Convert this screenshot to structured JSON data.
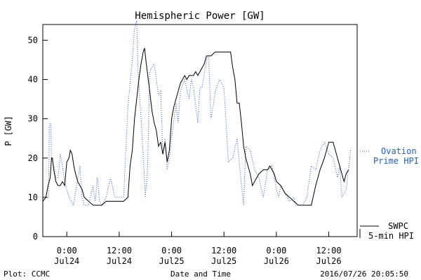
{
  "chart_data": {
    "type": "line",
    "title": "Hemispheric Power [GW]",
    "xlabel": "Date and Time",
    "ylabel": "P [GW]",
    "x_unit": "hours",
    "x_range": [
      -5.5,
      66.5
    ],
    "ylim": [
      0,
      54
    ],
    "yticks": [
      0,
      10,
      20,
      30,
      40,
      50
    ],
    "xticks": [
      {
        "x": 0,
        "time": "0:00",
        "day": "Jul24"
      },
      {
        "x": 12,
        "time": "12:00",
        "day": "Jul24"
      },
      {
        "x": 24,
        "time": "0:00",
        "day": "Jul25"
      },
      {
        "x": 36,
        "time": "12:00",
        "day": "Jul25"
      },
      {
        "x": 48,
        "time": "0:00",
        "day": "Jul26"
      },
      {
        "x": 60,
        "time": "12:00",
        "day": "Jul26"
      }
    ],
    "grid": false,
    "series": [
      {
        "name": "Ovation Prime HPI",
        "label_lines": [
          "Ovation",
          "Prime HPI"
        ],
        "style": "dotted",
        "color": "#1f5fbf",
        "values": [
          [
            -4.2,
            10
          ],
          [
            -4.0,
            28
          ],
          [
            -3.7,
            29
          ],
          [
            -3.5,
            20
          ],
          [
            -3.0,
            18
          ],
          [
            -2.5,
            15
          ],
          [
            -2.0,
            15
          ],
          [
            -1.5,
            21
          ],
          [
            -1.0,
            18
          ],
          [
            -0.5,
            14
          ],
          [
            0.5,
            10
          ],
          [
            1.0,
            9
          ],
          [
            1.5,
            8
          ],
          [
            3.0,
            18
          ],
          [
            3.5,
            10
          ],
          [
            4.0,
            8
          ],
          [
            5.0,
            8
          ],
          [
            6.0,
            13
          ],
          [
            6.5,
            9
          ],
          [
            7.0,
            15
          ],
          [
            7.5,
            9
          ],
          [
            8.0,
            8
          ],
          [
            9.0,
            10
          ],
          [
            10.0,
            15
          ],
          [
            11.0,
            10
          ],
          [
            13.0,
            10
          ],
          [
            14.0,
            33
          ],
          [
            15.0,
            45
          ],
          [
            15.5,
            53
          ],
          [
            16.0,
            55
          ],
          [
            16.3,
            43
          ],
          [
            17.0,
            30
          ],
          [
            17.5,
            21
          ],
          [
            18.0,
            10
          ],
          [
            18.5,
            17
          ],
          [
            19.0,
            42
          ],
          [
            20.0,
            44
          ],
          [
            21.0,
            36
          ],
          [
            21.5,
            37
          ],
          [
            22.0,
            21
          ],
          [
            22.5,
            25
          ],
          [
            23.0,
            17
          ],
          [
            23.5,
            20
          ],
          [
            24.0,
            25
          ],
          [
            25.0,
            34
          ],
          [
            25.5,
            29
          ],
          [
            26.0,
            37
          ],
          [
            27.0,
            40
          ],
          [
            28.0,
            35
          ],
          [
            28.5,
            40
          ],
          [
            29.0,
            38
          ],
          [
            30.0,
            29
          ],
          [
            30.5,
            38
          ],
          [
            31.0,
            38
          ],
          [
            32.0,
            45
          ],
          [
            32.5,
            46
          ],
          [
            33.0,
            30
          ],
          [
            33.5,
            33
          ],
          [
            34.0,
            37
          ],
          [
            35.0,
            40
          ],
          [
            36.0,
            38
          ],
          [
            37.0,
            19
          ],
          [
            38.0,
            20
          ],
          [
            39.0,
            25
          ],
          [
            39.5,
            19
          ],
          [
            40.0,
            13
          ],
          [
            40.5,
            8
          ],
          [
            41.0,
            23
          ],
          [
            42.0,
            22
          ],
          [
            43.0,
            17
          ],
          [
            44.0,
            15
          ],
          [
            45.0,
            10
          ],
          [
            46.0,
            17
          ],
          [
            47.0,
            18
          ],
          [
            48.0,
            12
          ],
          [
            48.5,
            10
          ],
          [
            49.0,
            13
          ],
          [
            50.0,
            11
          ],
          [
            51.0,
            9
          ],
          [
            52.0,
            10
          ],
          [
            52.5,
            8
          ],
          [
            54.0,
            8
          ],
          [
            55.0,
            10
          ],
          [
            56.0,
            18
          ],
          [
            57.0,
            17
          ],
          [
            58.0,
            22
          ],
          [
            59.0,
            24
          ],
          [
            60.0,
            21
          ],
          [
            61.0,
            20
          ],
          [
            62.0,
            15
          ],
          [
            62.5,
            18
          ],
          [
            63.0,
            10
          ],
          [
            64.0,
            12
          ],
          [
            65.0,
            22
          ]
        ]
      },
      {
        "name": "SWPC 5-min HPI",
        "label_lines": [
          "SWPC",
          "5-min HPI"
        ],
        "style": "solid",
        "color": "#000000",
        "values": [
          [
            -5.5,
            9
          ],
          [
            -4.8,
            10
          ],
          [
            -4.3,
            13
          ],
          [
            -3.8,
            15
          ],
          [
            -3.5,
            20
          ],
          [
            -3.3,
            20
          ],
          [
            -3.0,
            17
          ],
          [
            -2.5,
            14
          ],
          [
            -2.0,
            13
          ],
          [
            -1.5,
            13
          ],
          [
            -1.0,
            14
          ],
          [
            -0.5,
            13
          ],
          [
            0.0,
            19
          ],
          [
            0.5,
            20
          ],
          [
            0.8,
            22
          ],
          [
            1.2,
            21
          ],
          [
            1.6,
            18
          ],
          [
            2.0,
            16
          ],
          [
            2.5,
            14
          ],
          [
            3.0,
            13
          ],
          [
            3.5,
            12
          ],
          [
            4.0,
            10
          ],
          [
            5.0,
            9
          ],
          [
            6.0,
            8
          ],
          [
            7.0,
            8
          ],
          [
            8.0,
            8
          ],
          [
            9.0,
            9
          ],
          [
            10.0,
            9
          ],
          [
            11.0,
            9
          ],
          [
            12.0,
            9
          ],
          [
            13.0,
            9
          ],
          [
            14.0,
            10
          ],
          [
            14.5,
            18
          ],
          [
            15.0,
            22
          ],
          [
            15.5,
            30
          ],
          [
            16.0,
            35
          ],
          [
            16.5,
            40
          ],
          [
            17.0,
            44
          ],
          [
            17.5,
            47
          ],
          [
            17.8,
            48
          ],
          [
            18.2,
            44
          ],
          [
            19.0,
            37
          ],
          [
            19.5,
            32
          ],
          [
            20.0,
            29
          ],
          [
            20.5,
            27
          ],
          [
            21.0,
            23
          ],
          [
            21.5,
            24
          ],
          [
            22.0,
            21
          ],
          [
            22.5,
            24
          ],
          [
            23.0,
            19
          ],
          [
            23.5,
            22
          ],
          [
            24.0,
            30
          ],
          [
            24.5,
            33
          ],
          [
            25.0,
            35
          ],
          [
            25.5,
            37
          ],
          [
            26.0,
            39
          ],
          [
            26.5,
            40
          ],
          [
            27.0,
            41
          ],
          [
            27.5,
            40
          ],
          [
            28.0,
            41
          ],
          [
            28.5,
            41
          ],
          [
            29.0,
            41
          ],
          [
            29.5,
            42
          ],
          [
            30.0,
            41
          ],
          [
            30.5,
            42
          ],
          [
            31.0,
            43
          ],
          [
            31.5,
            44
          ],
          [
            32.0,
            46
          ],
          [
            32.5,
            46
          ],
          [
            33.0,
            46
          ],
          [
            34.0,
            47
          ],
          [
            35.0,
            47
          ],
          [
            36.0,
            47
          ],
          [
            37.0,
            47
          ],
          [
            37.5,
            47
          ],
          [
            38.0,
            43
          ],
          [
            38.5,
            40
          ],
          [
            39.0,
            34
          ],
          [
            39.5,
            34
          ],
          [
            40.0,
            29
          ],
          [
            40.5,
            23
          ],
          [
            41.0,
            20
          ],
          [
            41.5,
            18
          ],
          [
            42.0,
            16
          ],
          [
            42.5,
            13
          ],
          [
            43.0,
            14
          ],
          [
            44.0,
            16
          ],
          [
            45.0,
            17
          ],
          [
            46.0,
            17
          ],
          [
            46.5,
            18
          ],
          [
            47.0,
            17
          ],
          [
            47.5,
            16
          ],
          [
            48.0,
            14
          ],
          [
            49.0,
            13
          ],
          [
            50.0,
            11
          ],
          [
            51.0,
            10
          ],
          [
            52.0,
            9
          ],
          [
            53.0,
            8
          ],
          [
            54.0,
            8
          ],
          [
            55.0,
            8
          ],
          [
            56.0,
            8
          ],
          [
            57.0,
            13
          ],
          [
            58.0,
            17
          ],
          [
            59.0,
            20
          ],
          [
            59.5,
            22
          ],
          [
            60.0,
            24
          ],
          [
            61.0,
            24
          ],
          [
            61.5,
            22
          ],
          [
            62.0,
            20
          ],
          [
            63.0,
            16
          ],
          [
            63.5,
            14
          ],
          [
            64.0,
            16
          ],
          [
            64.5,
            17
          ]
        ]
      }
    ],
    "footer_left": "Plot: CCMC",
    "footer_right": "2016/07/26 20:05:50"
  }
}
